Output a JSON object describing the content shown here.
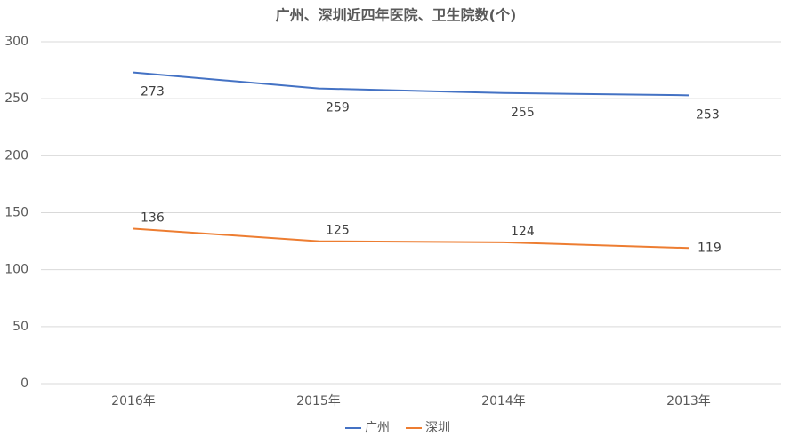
{
  "chart_data": {
    "type": "line",
    "title": "广州、深圳近四年医院、卫生院数(个)",
    "categories": [
      "2016年",
      "2015年",
      "2014年",
      "2013年"
    ],
    "series": [
      {
        "name": "广州",
        "color": "#4472c4",
        "values": [
          273,
          259,
          255,
          253
        ]
      },
      {
        "name": "深圳",
        "color": "#ed7d31",
        "values": [
          136,
          125,
          124,
          119
        ]
      }
    ],
    "ylim": [
      0,
      300
    ],
    "yticks": [
      0,
      50,
      100,
      150,
      200,
      250,
      300
    ],
    "grid": true,
    "legend": "bottom"
  }
}
